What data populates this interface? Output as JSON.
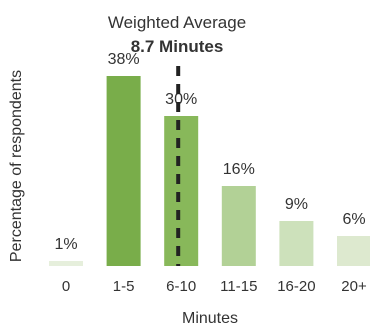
{
  "chart_data": {
    "type": "bar",
    "categories": [
      "0",
      "1-5",
      "6-10",
      "11-15",
      "16-20",
      "20+"
    ],
    "values": [
      1,
      38,
      30,
      16,
      9,
      6
    ],
    "value_labels": [
      "1%",
      "38%",
      "30%",
      "16%",
      "9%",
      "6%"
    ],
    "bar_colors": [
      "#e6efdc",
      "#79ad4a",
      "#88b85a",
      "#b2d196",
      "#cde1bb",
      "#dde9cf"
    ],
    "xlabel": "Minutes",
    "ylabel": "Percentage of respondents",
    "ylim": [
      0,
      40
    ],
    "grid": false,
    "legend": "none",
    "annotation": {
      "line1": "Weighted Average",
      "line2": "8.7 Minutes",
      "x_value": 8.7,
      "line_style": "dashed",
      "line_color": "#222222"
    }
  }
}
